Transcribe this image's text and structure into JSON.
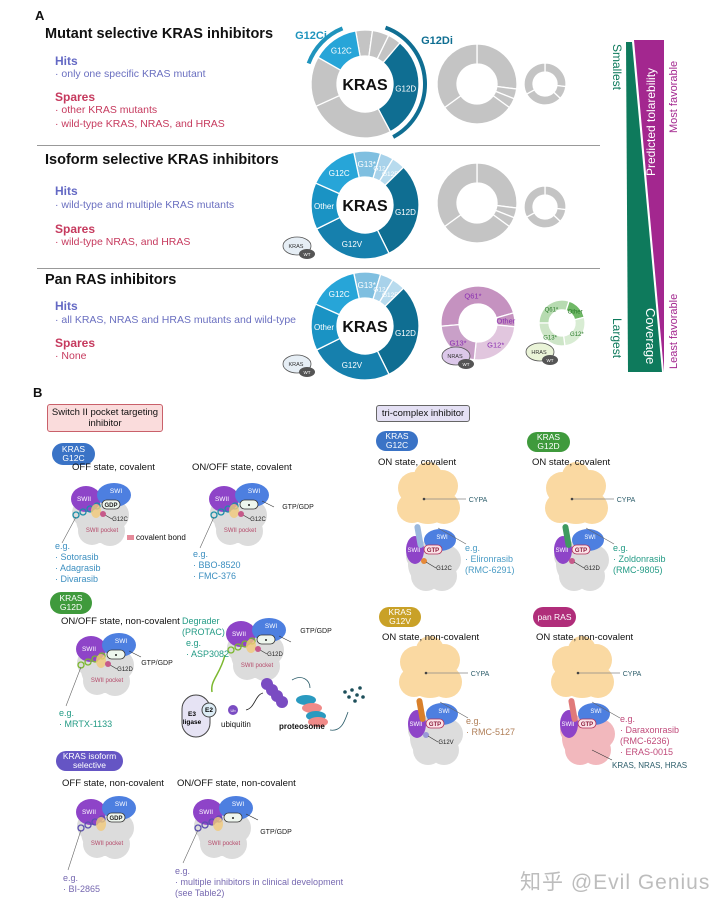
{
  "panel_a": {
    "label": "A",
    "classes": [
      {
        "title": "Mutant selective KRAS inhibitors",
        "hits_label": "Hits",
        "hits": [
          "· only one specific KRAS mutant"
        ],
        "spares_label": "Spares",
        "spares": [
          "· other KRAS mutants",
          "· wild-type KRAS, NRAS, and HRAS"
        ]
      },
      {
        "title": "Isoform selective KRAS inhibitors",
        "hits_label": "Hits",
        "hits": [
          "· wild-type and multiple KRAS mutants"
        ],
        "spares_label": "Spares",
        "spares": [
          "· wild-type NRAS, and HRAS"
        ]
      },
      {
        "title": "Pan RAS inhibitors",
        "hits_label": "Hits",
        "hits": [
          "· all KRAS, NRAS and HRAS mutants and wild-type"
        ],
        "spares_label": "Spares",
        "spares": [
          "· None"
        ]
      }
    ],
    "donuts": {
      "kras": "KRAS",
      "nras": "NRAS",
      "hras": "HRAS",
      "g12ci": "G12Ci",
      "g12di": "G12Di",
      "kras_segments": {
        "g12c": "G12C",
        "g12d": "G12D",
        "g12v": "G12V",
        "other": "Other",
        "g13": "G13*",
        "g12a": "G12A",
        "g12r": "G12R"
      },
      "nras_segments": {
        "q61": "Q61*",
        "other": "Other",
        "g12": "G12*",
        "g13": "G13*"
      },
      "hras_segments": {
        "q61": "Q61*",
        "other": "Other",
        "g12": "G12*",
        "g13": "G13*"
      },
      "wt": "WT"
    },
    "scale": {
      "smallest": "Smallest",
      "largest": "Largest",
      "coverage": "Coverage",
      "tolerability": "Predicted tolarebility",
      "most": "Most favorable",
      "least": "Least favorable"
    },
    "colors": {
      "coverage": "#0e7a5c",
      "tolerability": "#a3278f",
      "gray": "#c4c4c4",
      "kras_dark": "#0f6e92"
    }
  },
  "panel_b": {
    "label": "B",
    "switch_box": "Switch II pocket targeting inhibitor",
    "tri_box": "tri-complex inhibitor",
    "pills": {
      "kras_g12c": [
        "KRAS",
        "G12C"
      ],
      "kras_g12d": [
        "KRAS",
        "G12D"
      ],
      "kras_isoform": [
        "KRAS isoform",
        "selective"
      ],
      "kras_g12v": [
        "KRAS",
        "G12V"
      ],
      "pan_ras": [
        "pan RAS"
      ]
    },
    "protein": {
      "swi": "SWI",
      "swii": "SWII",
      "gdp": "GDP",
      "gtp": "GTP",
      "pocket": "SWII pocket",
      "g12c": "G12C",
      "g12d": "G12D",
      "g12v": "G12V",
      "cypa": "CYPA",
      "gtp_gdp": "GTP/GDP"
    },
    "left": {
      "g12c_off": {
        "title": "OFF state, covalent",
        "eg": "e.g.",
        "drugs": [
          "· Sotorasib",
          "· Adagrasib",
          "· Divarasib"
        ]
      },
      "covalent_bond": "covalent bond",
      "g12c_onoff": {
        "title": "ON/OFF state, covalent",
        "eg": "e.g.",
        "drugs": [
          "· BBO-8520",
          "· FMC-376"
        ]
      },
      "g12d_onoff": {
        "title": "ON/OFF state, non-covalent",
        "eg": "e.g.",
        "drugs": [
          "· MRTX-1133"
        ]
      },
      "degrader": {
        "title": [
          "Degrader",
          "(PROTAC)"
        ],
        "eg": "e.g.",
        "drugs": [
          "· ASP3082"
        ],
        "e3": [
          "E3",
          "ligase"
        ],
        "e2": "E2",
        "ub": "Ub",
        "ubiquitin": "ubiquitin",
        "proteosome": "proteosome"
      },
      "iso_off": {
        "title": "OFF state, non-covalent",
        "eg": "e.g.",
        "drugs": [
          "· BI-2865"
        ]
      },
      "iso_onoff": {
        "title": "ON/OFF state, non-covalent",
        "eg": "e.g.",
        "drugs": [
          "· multiple inhibitors in clinical development",
          "(see Table2)"
        ]
      }
    },
    "right": {
      "g12c_on": {
        "title": "ON state, covalent",
        "eg": "e.g.",
        "drugs": [
          "· Elironrasib",
          "(RMC-6291)"
        ]
      },
      "g12d_on": {
        "title": "ON state, covalent",
        "eg": "e.g.",
        "drugs": [
          "· Zoldonrasib",
          "(RMC-9805)"
        ]
      },
      "g12v_on": {
        "title": "ON state, non-covalent",
        "eg": "e.g.",
        "drugs": [
          "· RMC-5127"
        ]
      },
      "pan_on": {
        "title": "ON state, non-covalent",
        "eg": "e.g.",
        "drugs": [
          "· Daraxonrasib",
          "(RMC-6236)",
          "· ERAS-0015"
        ],
        "targets": "KRAS, NRAS, HRAS"
      }
    }
  },
  "watermark": "知乎 @Evil Genius"
}
